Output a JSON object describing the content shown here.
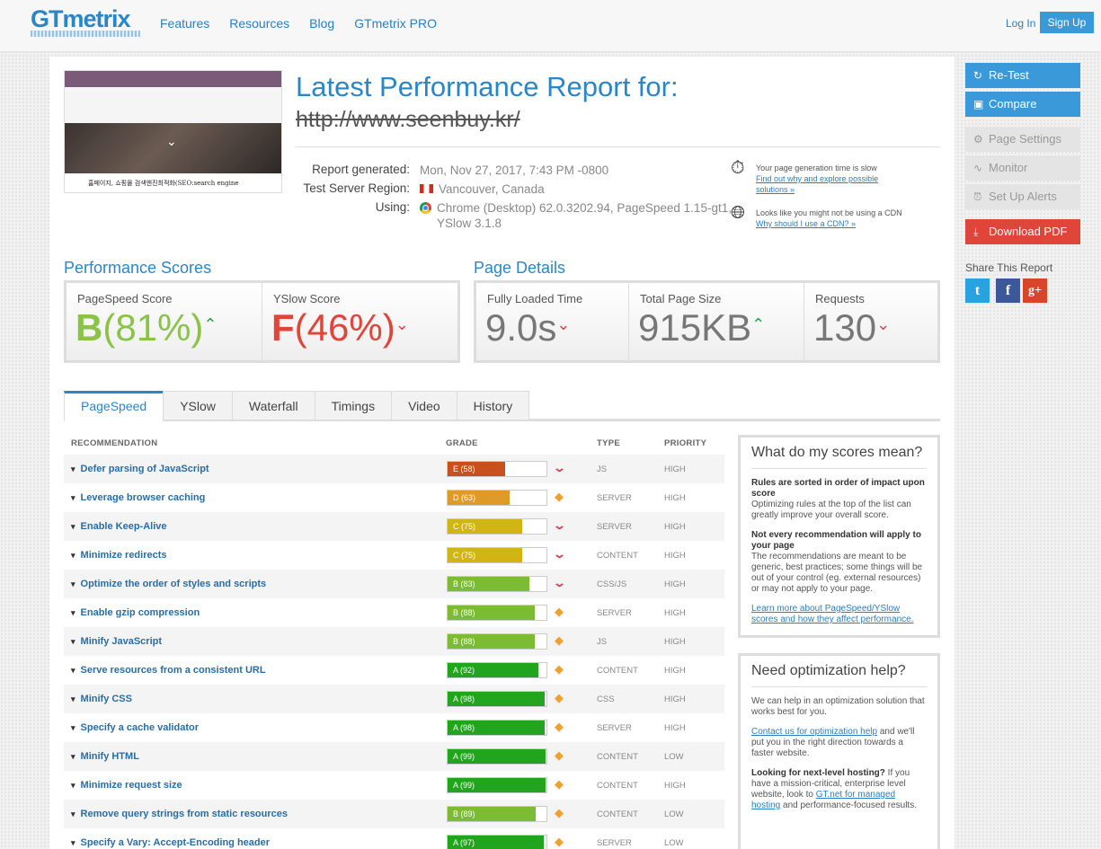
{
  "header": {
    "logo": "GTmetrix",
    "nav": [
      "Features",
      "Resources",
      "Blog",
      "GTmetrix PRO"
    ],
    "login": "Log In",
    "signup": "Sign Up"
  },
  "report": {
    "title": "Latest Performance Report for:",
    "url": "http://www.seenbuy.kr/",
    "thumb_caption": "홈페이지, 쇼핑몰 검색엔진최적화(SEO:search engine",
    "generated_label": "Report generated:",
    "generated_value": "Mon, Nov 27, 2017, 7:43 PM -0800",
    "region_label": "Test Server Region:",
    "region_value": "Vancouver, Canada",
    "using_label": "Using:",
    "using_value_1": "Chrome (Desktop) 62.0.3202.94, PageSpeed 1.15-gt1,",
    "using_value_2": "YSlow 3.1.8"
  },
  "tips": {
    "slow_text": "Your page generation time is slow",
    "slow_link": "Find out why and explore possible solutions »",
    "cdn_text": "Looks like you might not be using a CDN",
    "cdn_link": "Why should I use a CDN? »"
  },
  "scores": {
    "title": "Performance Scores",
    "pagespeed_label": "PageSpeed Score",
    "pagespeed_grade": "B",
    "pagespeed_pct": "(81%)",
    "yslow_label": "YSlow Score",
    "yslow_grade": "F",
    "yslow_pct": "(46%)"
  },
  "details": {
    "title": "Page Details",
    "loaded_label": "Fully Loaded Time",
    "loaded_value": "9.0s",
    "size_label": "Total Page Size",
    "size_value": "915KB",
    "requests_label": "Requests",
    "requests_value": "130"
  },
  "tabs": [
    "PageSpeed",
    "YSlow",
    "Waterfall",
    "Timings",
    "Video",
    "History"
  ],
  "table_headers": {
    "recommendation": "RECOMMENDATION",
    "grade": "GRADE",
    "type": "TYPE",
    "priority": "PRIORITY"
  },
  "recommendations": [
    {
      "name": "Defer parsing of JavaScript",
      "grade": "E (58)",
      "score": 58,
      "color": "#c8501e",
      "trend": "down",
      "type": "JS",
      "priority": "HIGH"
    },
    {
      "name": "Leverage browser caching",
      "grade": "D (63)",
      "score": 63,
      "color": "#e09a28",
      "trend": "same",
      "type": "SERVER",
      "priority": "HIGH"
    },
    {
      "name": "Enable Keep-Alive",
      "grade": "C (75)",
      "score": 75,
      "color": "#d2b414",
      "trend": "down",
      "type": "SERVER",
      "priority": "HIGH"
    },
    {
      "name": "Minimize redirects",
      "grade": "C (75)",
      "score": 75,
      "color": "#d2b414",
      "trend": "down",
      "type": "CONTENT",
      "priority": "HIGH"
    },
    {
      "name": "Optimize the order of styles and scripts",
      "grade": "B (83)",
      "score": 83,
      "color": "#7cbc34",
      "trend": "down",
      "type": "CSS/JS",
      "priority": "HIGH"
    },
    {
      "name": "Enable gzip compression",
      "grade": "B (88)",
      "score": 88,
      "color": "#7cbc34",
      "trend": "same",
      "type": "SERVER",
      "priority": "HIGH"
    },
    {
      "name": "Minify JavaScript",
      "grade": "B (88)",
      "score": 88,
      "color": "#7cbc34",
      "trend": "same",
      "type": "JS",
      "priority": "HIGH"
    },
    {
      "name": "Serve resources from a consistent URL",
      "grade": "A (92)",
      "score": 92,
      "color": "#22a41e",
      "trend": "same",
      "type": "CONTENT",
      "priority": "HIGH"
    },
    {
      "name": "Minify CSS",
      "grade": "A (98)",
      "score": 98,
      "color": "#22a41e",
      "trend": "same",
      "type": "CSS",
      "priority": "HIGH"
    },
    {
      "name": "Specify a cache validator",
      "grade": "A (98)",
      "score": 98,
      "color": "#22a41e",
      "trend": "same",
      "type": "SERVER",
      "priority": "HIGH"
    },
    {
      "name": "Minify HTML",
      "grade": "A (99)",
      "score": 99,
      "color": "#22a41e",
      "trend": "same",
      "type": "CONTENT",
      "priority": "LOW"
    },
    {
      "name": "Minimize request size",
      "grade": "A (99)",
      "score": 99,
      "color": "#22a41e",
      "trend": "same",
      "type": "CONTENT",
      "priority": "HIGH"
    },
    {
      "name": "Remove query strings from static resources",
      "grade": "B (89)",
      "score": 89,
      "color": "#7cbc34",
      "trend": "same",
      "type": "CONTENT",
      "priority": "LOW"
    },
    {
      "name": "Specify a Vary: Accept-Encoding header",
      "grade": "A (97)",
      "score": 97,
      "color": "#22a41e",
      "trend": "same",
      "type": "SERVER",
      "priority": "LOW"
    }
  ],
  "side1": {
    "title": "What do my scores mean?",
    "b1": "Rules are sorted in order of impact upon score",
    "p1": "Optimizing rules at the top of the list can greatly improve your overall score.",
    "b2": "Not every recommendation will apply to your page",
    "p2": "The recommendations are meant to be generic, best practices; some things will be out of your control (eg. external resources) or may not apply to your page.",
    "link": "Learn more about PageSpeed/YSlow scores and how they affect performance."
  },
  "side2": {
    "title": "Need optimization help?",
    "p1": "We can help in an optimization solution that works best for you.",
    "link1": "Contact us for optimization help",
    "p2": " and we'll put you in the right direction towards a faster website.",
    "b3": "Looking for next-level hosting?",
    "p3": " If you have a mission-critical, enterprise level website, look to ",
    "link2": "GT.net for managed hosting",
    "p4": " and performance-focused results."
  },
  "actions": {
    "retest": "Re-Test",
    "compare": "Compare",
    "settings": "Page Settings",
    "monitor": "Monitor",
    "alerts": "Set Up Alerts",
    "pdf": "Download PDF",
    "share_label": "Share This Report"
  }
}
